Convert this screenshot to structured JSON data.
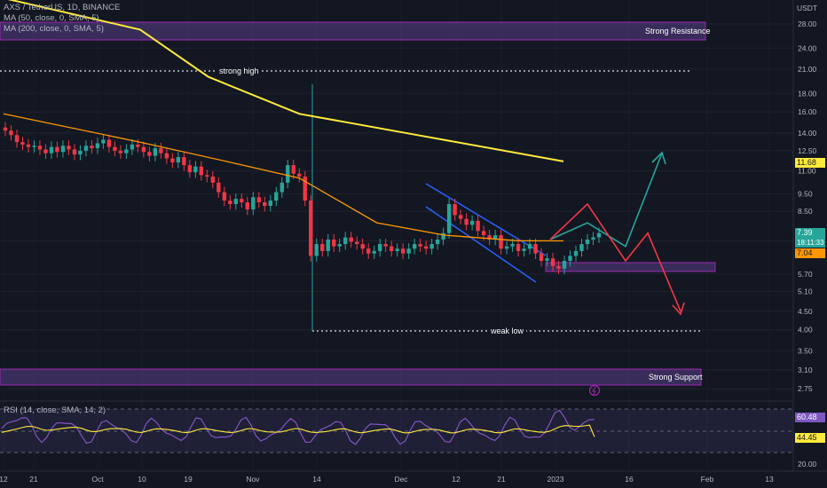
{
  "legend": {
    "symbol": "AXS / TetherUS, 1D, BINANCE",
    "ma50": "MA (50, close, 0, SMA, 5)",
    "ma200": "MA (200, close, 0, SMA, 5)",
    "rsi": "RSI (14, close, SMA, 14, 2)"
  },
  "price_axis": {
    "currency": "USDT",
    "ticks": [
      "28.00",
      "24.00",
      "21.00",
      "18.00",
      "16.00",
      "14.00",
      "12.50",
      "11.00",
      "9.50",
      "8.50",
      "7.04",
      "5.70",
      "5.10",
      "4.50",
      "4.00",
      "3.50",
      "3.10",
      "2.75"
    ],
    "rsi_ticks": [
      "20.00"
    ]
  },
  "price_tags": {
    "ma200": {
      "value": "11.68",
      "color": "#ffeb3b"
    },
    "last": {
      "value": "7.39",
      "countdown": "18:11:33",
      "color": "#26a69a"
    },
    "ma50": {
      "value": "7.04",
      "color": "#ff9800"
    },
    "rsi": {
      "value": "60.48",
      "color": "#7e57c2"
    },
    "rsi_ma": {
      "value": "44.45",
      "color": "#ffeb3b"
    }
  },
  "time_axis": [
    "12",
    "21",
    "Oct",
    "10",
    "19",
    "Nov",
    "14",
    "Dec",
    "12",
    "21",
    "2023",
    "16",
    "Feb",
    "13"
  ],
  "annotations": {
    "strong_resistance": "Strong Resistance",
    "strong_support": "Strong Support",
    "strong_high": "strong high",
    "weak_low": "weak low"
  },
  "chart_data": {
    "type": "candlestick",
    "title": "AXS / TetherUS, 1D, BINANCE",
    "y_scale": "log",
    "ylim": [
      2.5,
      32
    ],
    "x_range": [
      "2022-09-10",
      "2023-02-20"
    ],
    "candles_close": [
      14.2,
      13.8,
      13.2,
      13.0,
      12.8,
      12.9,
      12.6,
      12.3,
      12.8,
      12.4,
      12.9,
      12.6,
      12.2,
      12.5,
      12.9,
      12.7,
      13.1,
      13.4,
      12.8,
      12.5,
      12.3,
      12.6,
      13.0,
      12.8,
      12.4,
      12.1,
      12.7,
      12.3,
      11.9,
      11.6,
      12.0,
      11.4,
      10.9,
      11.3,
      10.7,
      10.6,
      10.2,
      9.6,
      9.1,
      8.9,
      9.2,
      9.0,
      8.6,
      9.3,
      9.0,
      8.8,
      9.1,
      9.6,
      10.2,
      11.4,
      10.8,
      10.6,
      9.1,
      6.4,
      6.9,
      6.6,
      7.1,
      6.8,
      6.9,
      7.2,
      7.0,
      6.9,
      6.7,
      6.5,
      6.6,
      6.9,
      6.8,
      6.6,
      6.7,
      6.5,
      6.7,
      6.9,
      6.8,
      6.7,
      6.9,
      7.1,
      7.4,
      8.9,
      8.3,
      8.1,
      7.8,
      8.0,
      7.5,
      7.3,
      7.1,
      7.3,
      6.7,
      6.8,
      6.9,
      6.6,
      6.7,
      6.9,
      6.5,
      6.2,
      6.3,
      6.0,
      5.9,
      6.2,
      6.4,
      6.6,
      6.9,
      7.1,
      7.2,
      7.4
    ],
    "ma50": {
      "name": "MA (50, close, 0, SMA, 5)",
      "color": "#ff9800",
      "x": [
        "2022-09-10",
        "2022-10-10",
        "2022-10-30",
        "2022-11-14",
        "2022-12-01",
        "2022-12-16",
        "2023-01-01",
        "2023-01-11"
      ],
      "values": [
        15.8,
        13.2,
        11.6,
        10.5,
        7.9,
        7.3,
        7.05,
        7.04
      ]
    },
    "ma200": {
      "name": "MA (200, close, 0, SMA, 5)",
      "color": "#ffeb3b",
      "x": [
        "2022-09-10",
        "2022-10-10",
        "2022-10-25",
        "2022-11-14",
        "2022-12-10",
        "2023-01-11"
      ],
      "values": [
        33,
        27,
        20,
        15.8,
        13.8,
        11.68
      ]
    },
    "projection_bull": [
      7.1,
      7.9,
      6.8,
      12.3
    ],
    "projection_bear": [
      7.1,
      8.9,
      6.2,
      7.4,
      4.5
    ],
    "rsi": {
      "last": 60.48,
      "ma": 44.45,
      "levels": [
        30,
        50,
        70
      ]
    }
  }
}
